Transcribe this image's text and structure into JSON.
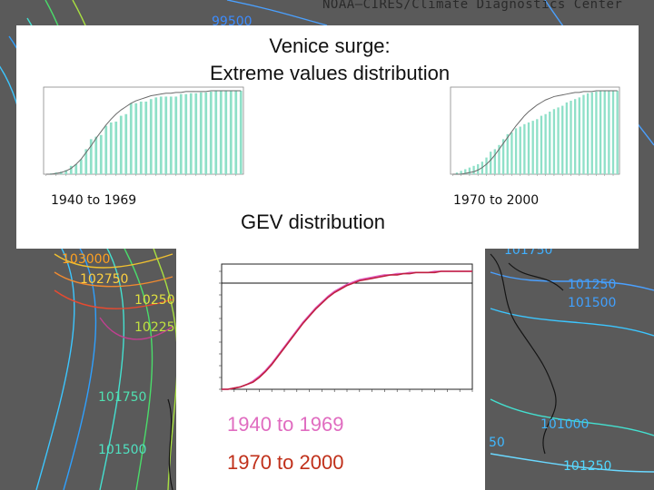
{
  "header": {
    "text": "NOAA—CIRES/Climate Diagnostics Center"
  },
  "background": {
    "contour_labels": [
      "99500",
      "103000",
      "102750",
      "10250",
      "10225",
      "101750",
      "101500",
      "101750",
      "101250",
      "101500",
      "101000",
      "50",
      "101250"
    ]
  },
  "panel": {
    "title_line1": "Venice surge:",
    "title_line2": "Extreme values distribution",
    "left_period": "1940 to 1969",
    "right_period": "1970 to 2000",
    "gev_title": "GEV distribution"
  },
  "legend": {
    "series1": "1940 to 1969",
    "series2": "1970 to 2000",
    "colors": {
      "series1": "#e060c0",
      "series2": "#c02040"
    }
  },
  "chart_data": [
    {
      "type": "bar",
      "title": "1940 to 1969",
      "description_series": "histogram (cumulative) with fitted curve",
      "values": [
        0.0,
        0.01,
        0.02,
        0.03,
        0.05,
        0.1,
        0.12,
        0.18,
        0.3,
        0.42,
        0.45,
        0.47,
        0.58,
        0.62,
        0.63,
        0.7,
        0.72,
        0.85,
        0.85,
        0.87,
        0.87,
        0.9,
        0.92,
        0.93,
        0.93,
        0.93,
        0.93,
        0.96,
        0.96,
        0.97,
        0.97,
        0.98,
        0.98,
        0.99,
        1.0,
        1.0,
        1.0,
        1.0,
        1.0,
        1.0
      ],
      "curve": [
        0.0,
        0.0,
        0.01,
        0.02,
        0.04,
        0.07,
        0.12,
        0.18,
        0.26,
        0.34,
        0.43,
        0.51,
        0.59,
        0.66,
        0.72,
        0.77,
        0.81,
        0.85,
        0.88,
        0.9,
        0.92,
        0.94,
        0.95,
        0.96,
        0.97,
        0.97,
        0.98,
        0.98,
        0.99,
        0.99,
        0.99,
        0.99,
        0.99,
        1.0,
        1.0,
        1.0,
        1.0,
        1.0,
        1.0,
        1.0
      ],
      "ylim": [
        0,
        1
      ]
    },
    {
      "type": "bar",
      "title": "1970 to 2000",
      "values": [
        0.0,
        0.02,
        0.04,
        0.06,
        0.08,
        0.1,
        0.12,
        0.15,
        0.2,
        0.27,
        0.3,
        0.35,
        0.42,
        0.48,
        0.5,
        0.55,
        0.57,
        0.6,
        0.62,
        0.64,
        0.66,
        0.7,
        0.72,
        0.75,
        0.78,
        0.8,
        0.82,
        0.86,
        0.88,
        0.9,
        0.92,
        0.95,
        0.97,
        0.98,
        0.99,
        1.0,
        1.0,
        1.0,
        1.0,
        1.0
      ],
      "curve": [
        0.0,
        0.0,
        0.0,
        0.01,
        0.02,
        0.03,
        0.05,
        0.08,
        0.12,
        0.17,
        0.23,
        0.3,
        0.37,
        0.44,
        0.51,
        0.58,
        0.64,
        0.7,
        0.75,
        0.79,
        0.83,
        0.86,
        0.89,
        0.91,
        0.93,
        0.94,
        0.95,
        0.96,
        0.97,
        0.98,
        0.98,
        0.99,
        0.99,
        0.99,
        1.0,
        1.0,
        1.0,
        1.0,
        1.0,
        1.0
      ],
      "ylim": [
        0,
        1
      ]
    },
    {
      "type": "line",
      "title": "GEV distribution",
      "xlim": [
        0,
        40
      ],
      "ylim": [
        0,
        1.0
      ],
      "ref_line": 0.9,
      "series": [
        {
          "name": "1940 to 1969",
          "values": [
            0.0,
            0.0,
            0.01,
            0.02,
            0.04,
            0.07,
            0.11,
            0.16,
            0.22,
            0.29,
            0.36,
            0.43,
            0.5,
            0.57,
            0.63,
            0.69,
            0.74,
            0.79,
            0.83,
            0.86,
            0.89,
            0.91,
            0.93,
            0.94,
            0.95,
            0.96,
            0.97,
            0.97,
            0.98,
            0.98,
            0.99,
            0.99,
            0.99,
            0.99,
            1.0,
            1.0,
            1.0,
            1.0,
            1.0,
            1.0,
            1.0
          ]
        },
        {
          "name": "1970 to 2000",
          "values": [
            0.0,
            0.0,
            0.01,
            0.02,
            0.04,
            0.06,
            0.1,
            0.15,
            0.21,
            0.28,
            0.35,
            0.42,
            0.49,
            0.56,
            0.62,
            0.68,
            0.73,
            0.78,
            0.82,
            0.85,
            0.88,
            0.9,
            0.92,
            0.93,
            0.94,
            0.95,
            0.96,
            0.97,
            0.97,
            0.98,
            0.98,
            0.99,
            0.99,
            0.99,
            0.99,
            1.0,
            1.0,
            1.0,
            1.0,
            1.0,
            1.0
          ]
        }
      ]
    }
  ]
}
